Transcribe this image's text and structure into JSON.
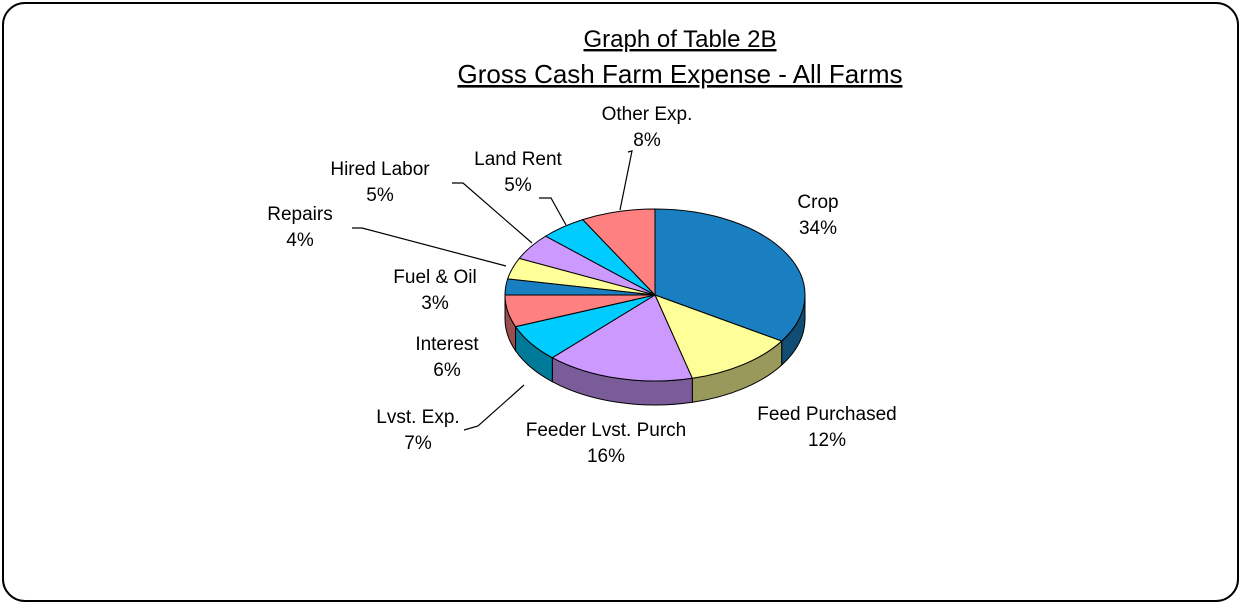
{
  "chart_data": {
    "type": "pie3d",
    "title": "Graph of Table 2B",
    "subtitle": "Gross Cash Farm Expense - All Farms",
    "categories": [
      "Crop",
      "Feed Purchased",
      "Feeder Lvst. Purch",
      "Lvst. Exp.",
      "Interest",
      "Fuel & Oil",
      "Repairs",
      "Hired Labor",
      "Land Rent",
      "Other Exp."
    ],
    "values": [
      34,
      12,
      16,
      7,
      6,
      3,
      4,
      5,
      5,
      8
    ],
    "value_labels": [
      "34%",
      "12%",
      "16%",
      "7%",
      "6%",
      "3%",
      "4%",
      "5%",
      "5%",
      "8%"
    ],
    "colors": [
      "#1a7fc1",
      "#ffff99",
      "#cc99ff",
      "#00ccff",
      "#ff8080",
      "#1a7fc1",
      "#ffff99",
      "#cc99ff",
      "#00ccff",
      "#ff8080"
    ]
  }
}
